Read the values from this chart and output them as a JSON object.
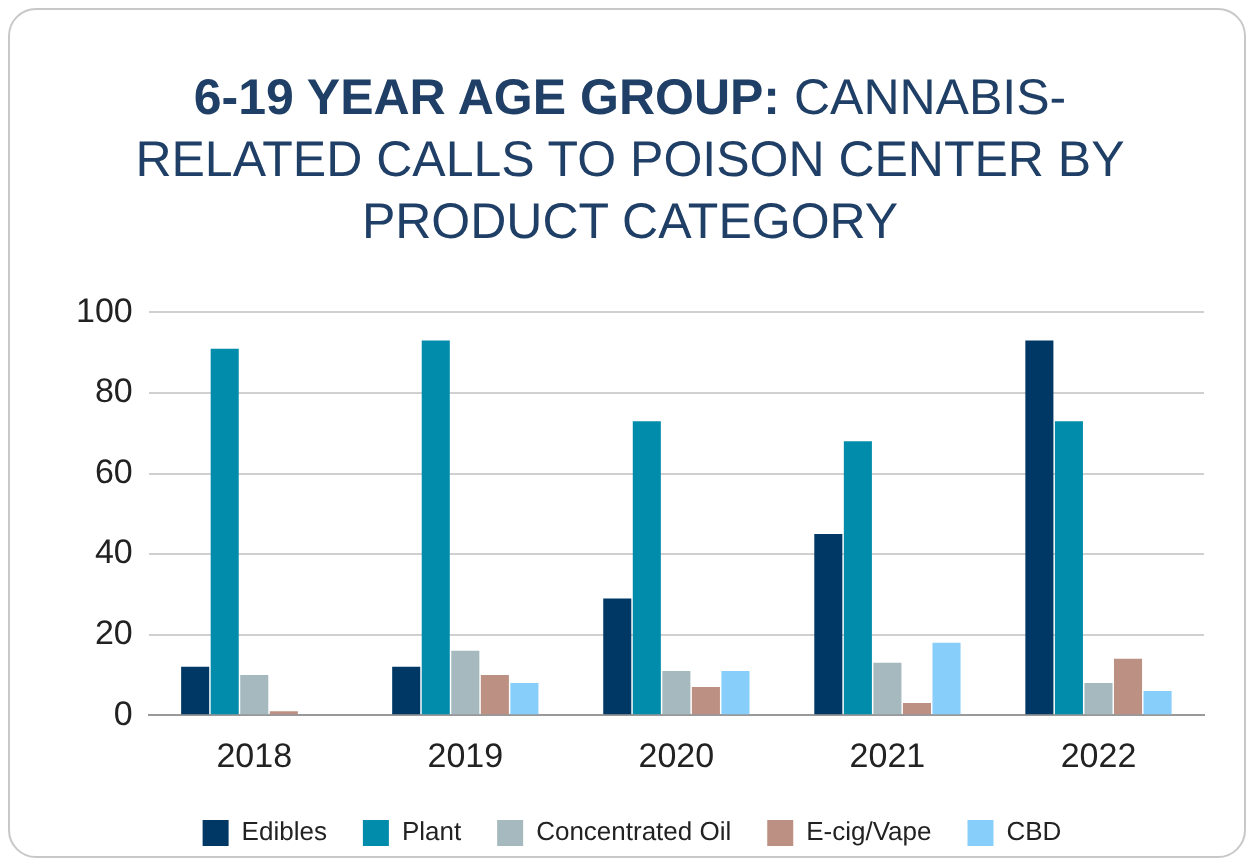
{
  "chart_data": {
    "type": "bar",
    "title": "6-19 YEAR AGE GROUP: CANNABIS-RELATED CALLS TO POISON CENTER BY PRODUCT CATEGORY",
    "categories": [
      "2018",
      "2019",
      "2020",
      "2021",
      "2022"
    ],
    "series": [
      {
        "name": "Edibles",
        "color": "#003865",
        "values": [
          12,
          12,
          29,
          45,
          93
        ]
      },
      {
        "name": "Plant",
        "color": "#008caa",
        "values": [
          91,
          93,
          73,
          68,
          73
        ]
      },
      {
        "name": "Concentrated Oil",
        "color": "#a5b9bf",
        "values": [
          10,
          16,
          11,
          13,
          8
        ]
      },
      {
        "name": "E-cig/Vape",
        "color": "#bc9082",
        "values": [
          1,
          10,
          7,
          3,
          14
        ]
      },
      {
        "name": "CBD",
        "color": "#87cefa",
        "values": [
          0,
          8,
          11,
          18,
          6
        ]
      }
    ],
    "ylim": [
      0,
      100
    ],
    "yticks": [
      0,
      20,
      40,
      60,
      80,
      100
    ],
    "grid": "y",
    "legend": "bottom"
  }
}
